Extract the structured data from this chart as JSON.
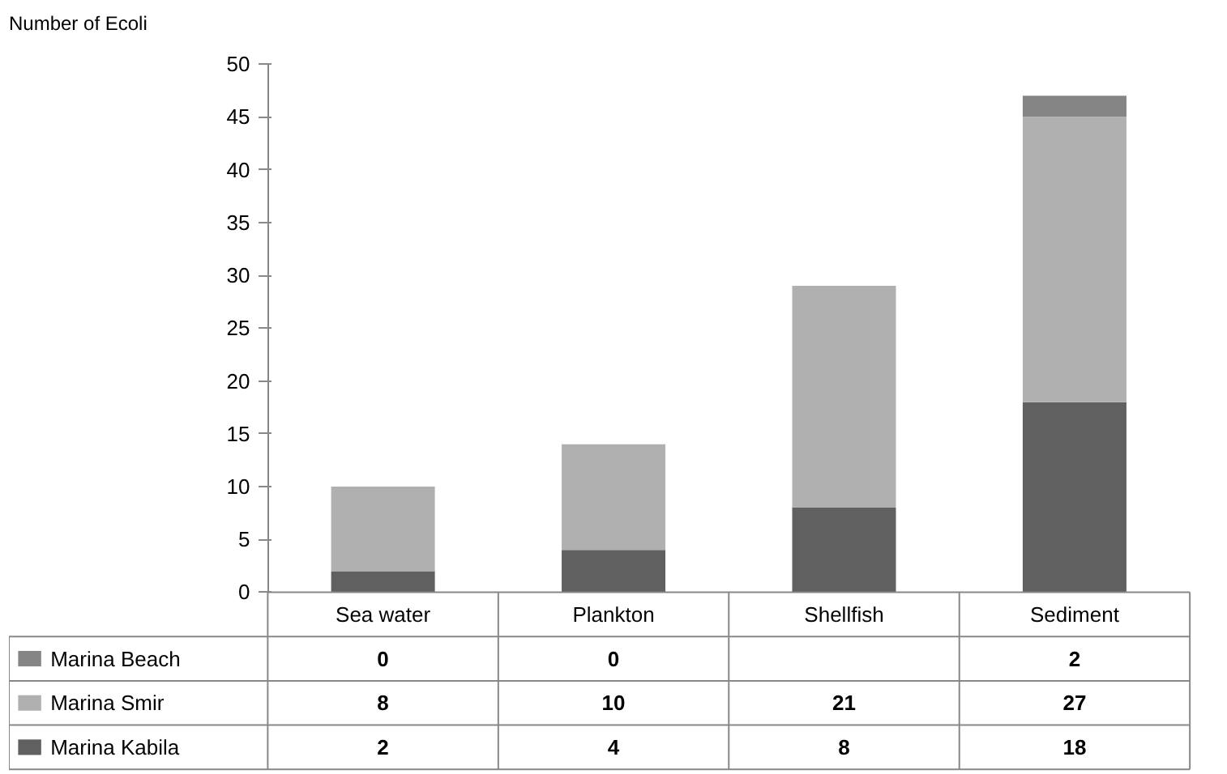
{
  "chart_data": {
    "type": "bar",
    "stacked": true,
    "ylabel": "Number of Ecoli",
    "categories": [
      "Sea water",
      "Plankton",
      "Shellfish",
      "Sediment"
    ],
    "series": [
      {
        "name": "Marina Kabila",
        "color": "#606060",
        "values": [
          2,
          4,
          8,
          18
        ]
      },
      {
        "name": "Marina Smir",
        "color": "#b0b0b0",
        "values": [
          8,
          10,
          21,
          27
        ]
      },
      {
        "name": "Marina Beach",
        "color": "#858585",
        "values": [
          0,
          0,
          null,
          2
        ]
      }
    ],
    "ylim": [
      0,
      50
    ],
    "yticks": [
      0,
      5,
      10,
      15,
      20,
      25,
      30,
      35,
      40,
      45,
      50
    ],
    "grid": false,
    "legend": "bottom",
    "data_labels": true
  }
}
